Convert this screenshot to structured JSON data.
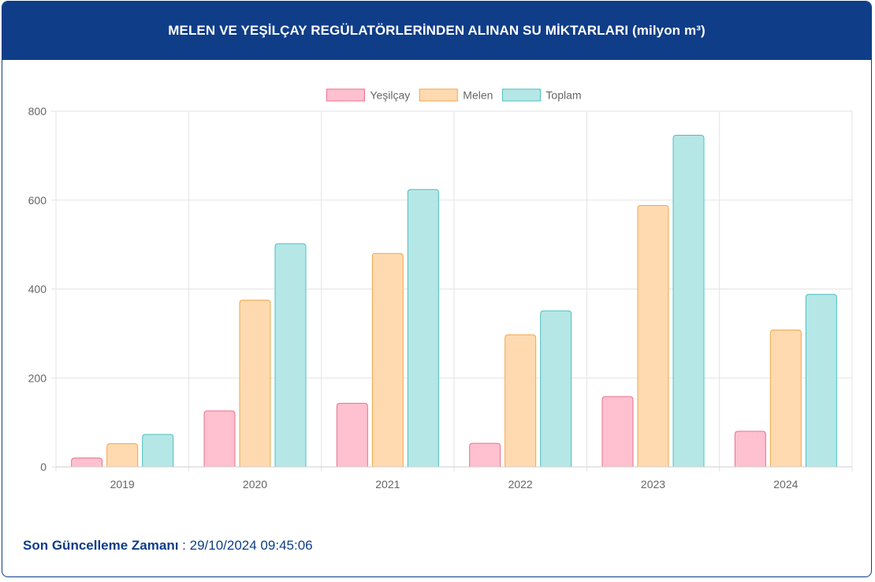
{
  "header": {
    "title": "MELEN VE YEŞİLÇAY REGÜLATÖRLERİNDEN ALINAN SU MİKTARLARI (milyon m³)"
  },
  "footer": {
    "label": "Son Güncelleme Zamanı",
    "separator": " : ",
    "value": "29/10/2024 09:45:06"
  },
  "chart_data": {
    "type": "bar",
    "categories": [
      "2019",
      "2020",
      "2021",
      "2022",
      "2023",
      "2024"
    ],
    "ylim": [
      0,
      800
    ],
    "yticks": [
      0,
      200,
      400,
      600,
      800
    ],
    "grid": true,
    "legend_position": "top",
    "series": [
      {
        "name": "Yeşilçay",
        "values": [
          20,
          126,
          143,
          53,
          158,
          80
        ],
        "fill": "#ffc0cf",
        "stroke": "#ec6f8d"
      },
      {
        "name": "Melen",
        "values": [
          52,
          375,
          480,
          297,
          588,
          308
        ],
        "fill": "#ffdab0",
        "stroke": "#f3a54a"
      },
      {
        "name": "Toplam",
        "values": [
          73,
          502,
          624,
          351,
          746,
          388
        ],
        "fill": "#b5e7e6",
        "stroke": "#4cc0c0"
      }
    ]
  }
}
